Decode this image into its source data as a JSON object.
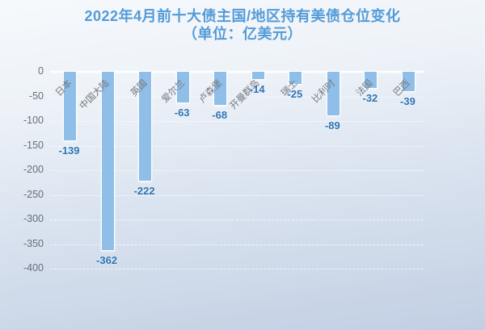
{
  "title": {
    "line1": "2022年4月前十大债主国/地区持有美债仓位变化",
    "line2": "（单位：亿美元）"
  },
  "chart_data": {
    "type": "bar",
    "title": "2022年4月前十大债主国/地区持有美债仓位变化",
    "subtitle": "（单位：亿美元）",
    "categories": [
      "日本",
      "中国大陆",
      "英国",
      "爱尔兰",
      "卢森堡",
      "开曼群岛",
      "瑞士",
      "比利时",
      "法国",
      "巴西"
    ],
    "values": [
      -139,
      -362,
      -222,
      -63,
      -68,
      -14,
      -25,
      -89,
      -32,
      -39
    ],
    "xlabel": "",
    "ylabel": "",
    "ylim": [
      -400,
      0
    ],
    "yticks": [
      0,
      -50,
      -100,
      -150,
      -200,
      -250,
      -300,
      -350,
      -400
    ],
    "grid": "horizontal-dashed",
    "legend": "none",
    "style": {
      "bar_color": "#8fbee8",
      "bar_border_color": "#fcfeff",
      "value_label_color": "#2e74b6",
      "tick_label_color": "#696f78",
      "category_label_color": "#75797f",
      "title_color": "#539bd8",
      "grid_color": "rgba(255,255,255,0.7)",
      "background_top": "#f6f9fc",
      "background_bottom": "#c2cfe3"
    }
  }
}
